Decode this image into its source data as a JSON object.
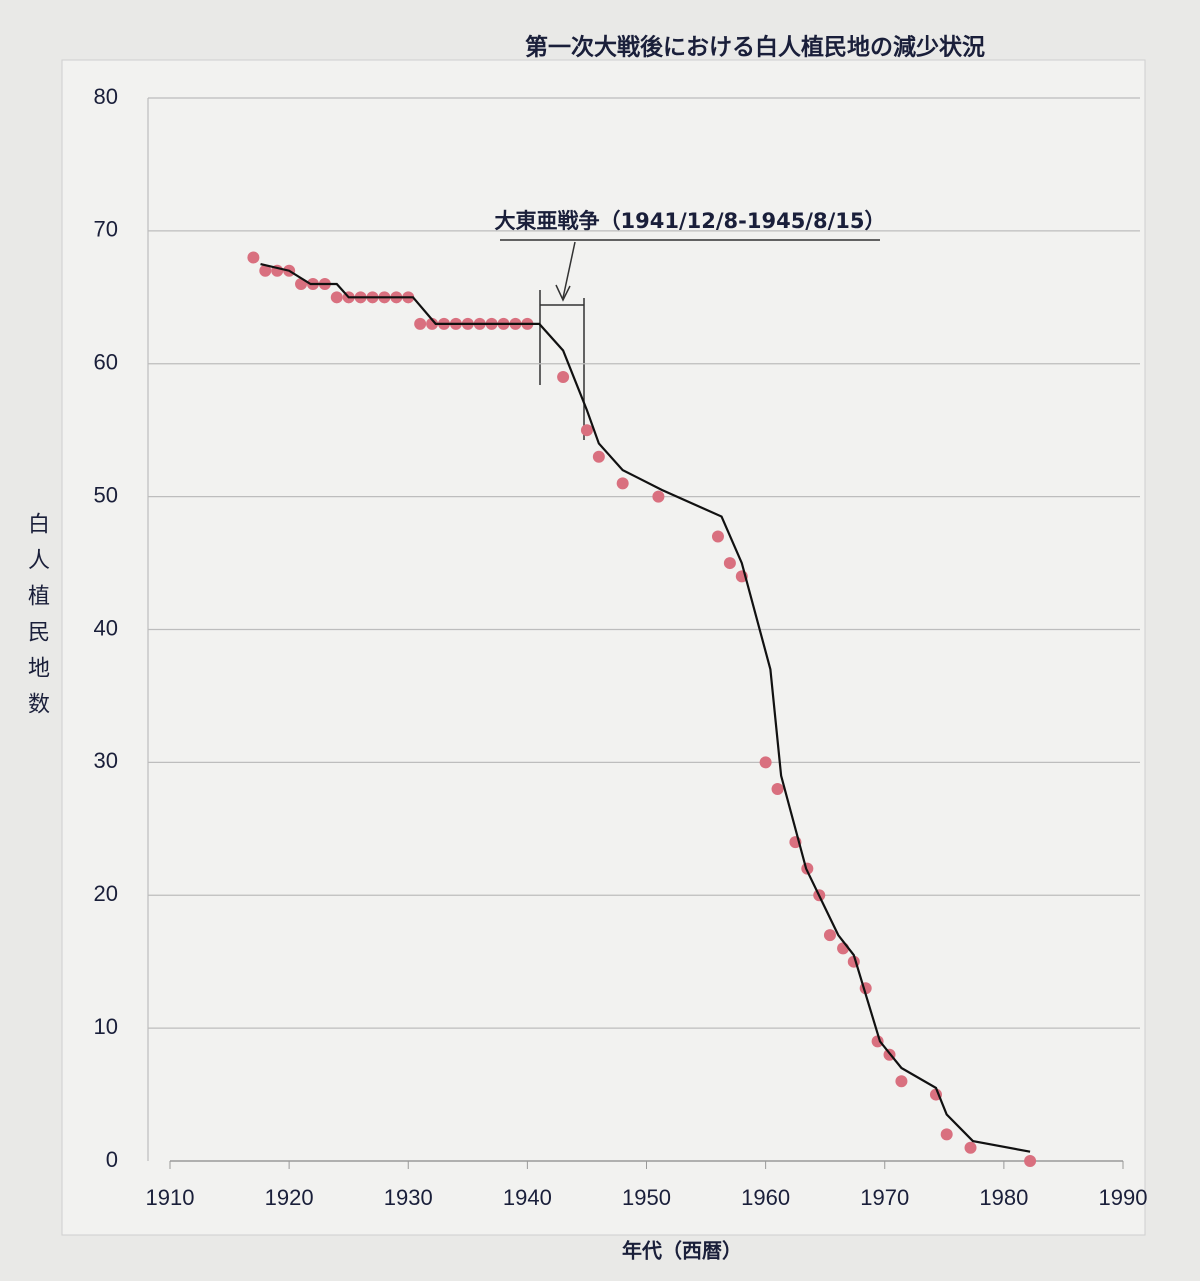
{
  "chart_data": {
    "type": "scatter-line",
    "title": "第一次大戦後における白人植民地の減少状況",
    "x_label": "年代（西暦）",
    "y_label": "白人植民地数",
    "annotation": "大東亜戦争（1941/12/8-1945/8/15）",
    "xlim": [
      1910,
      1990
    ],
    "xticks": [
      1910,
      1920,
      1930,
      1940,
      1950,
      1960,
      1970,
      1980,
      1990
    ],
    "ylim": [
      0,
      80
    ],
    "yticks": [
      0,
      10,
      20,
      30,
      40,
      50,
      60,
      70,
      80
    ],
    "grid": true,
    "series": [
      {
        "kind": "points",
        "color": "#d9707f",
        "x": [
          1917,
          1918,
          1919,
          1920,
          1921,
          1922,
          1923,
          1924,
          1925,
          1926,
          1927,
          1928,
          1929,
          1930,
          1931,
          1932,
          1933,
          1934,
          1935,
          1936,
          1937,
          1938,
          1939,
          1940,
          1943,
          1945,
          1946,
          1948,
          1951,
          1956,
          1957,
          1958,
          1960,
          1961,
          1962.5,
          1963.5,
          1964.5,
          1965.4,
          1966.5,
          1967.4,
          1968.4,
          1969.4,
          1970.4,
          1971.4,
          1974.3,
          1975.2,
          1977.2,
          1982.2
        ],
        "values": [
          68,
          67,
          67,
          67,
          66,
          66,
          66,
          65,
          65,
          65,
          65,
          65,
          65,
          65,
          63,
          63,
          63,
          63,
          63,
          63,
          63,
          63,
          63,
          63,
          59,
          55,
          53,
          51,
          50,
          47,
          45,
          44,
          30,
          28,
          24,
          22,
          20,
          17,
          16,
          15,
          13,
          9,
          8,
          6,
          5,
          2,
          1,
          0
        ]
      },
      {
        "kind": "line",
        "color": "#111111",
        "x": [
          1917.6,
          1920,
          1921.8,
          1924,
          1925,
          1930.4,
          1932.3,
          1941,
          1943,
          1945,
          1946,
          1948,
          1951.3,
          1956.3,
          1958,
          1960.4,
          1961.3,
          1963.4,
          1966.1,
          1967.4,
          1969.6,
          1971.4,
          1974.3,
          1975.2,
          1977.4,
          1982.2
        ],
        "values": [
          67.5,
          67,
          66,
          66,
          65,
          65,
          63,
          63,
          61,
          56.5,
          54,
          52,
          50.5,
          48.5,
          45,
          37,
          29,
          22,
          17,
          15.5,
          9,
          7,
          5.5,
          3.5,
          1.5,
          0.7
        ]
      }
    ]
  }
}
